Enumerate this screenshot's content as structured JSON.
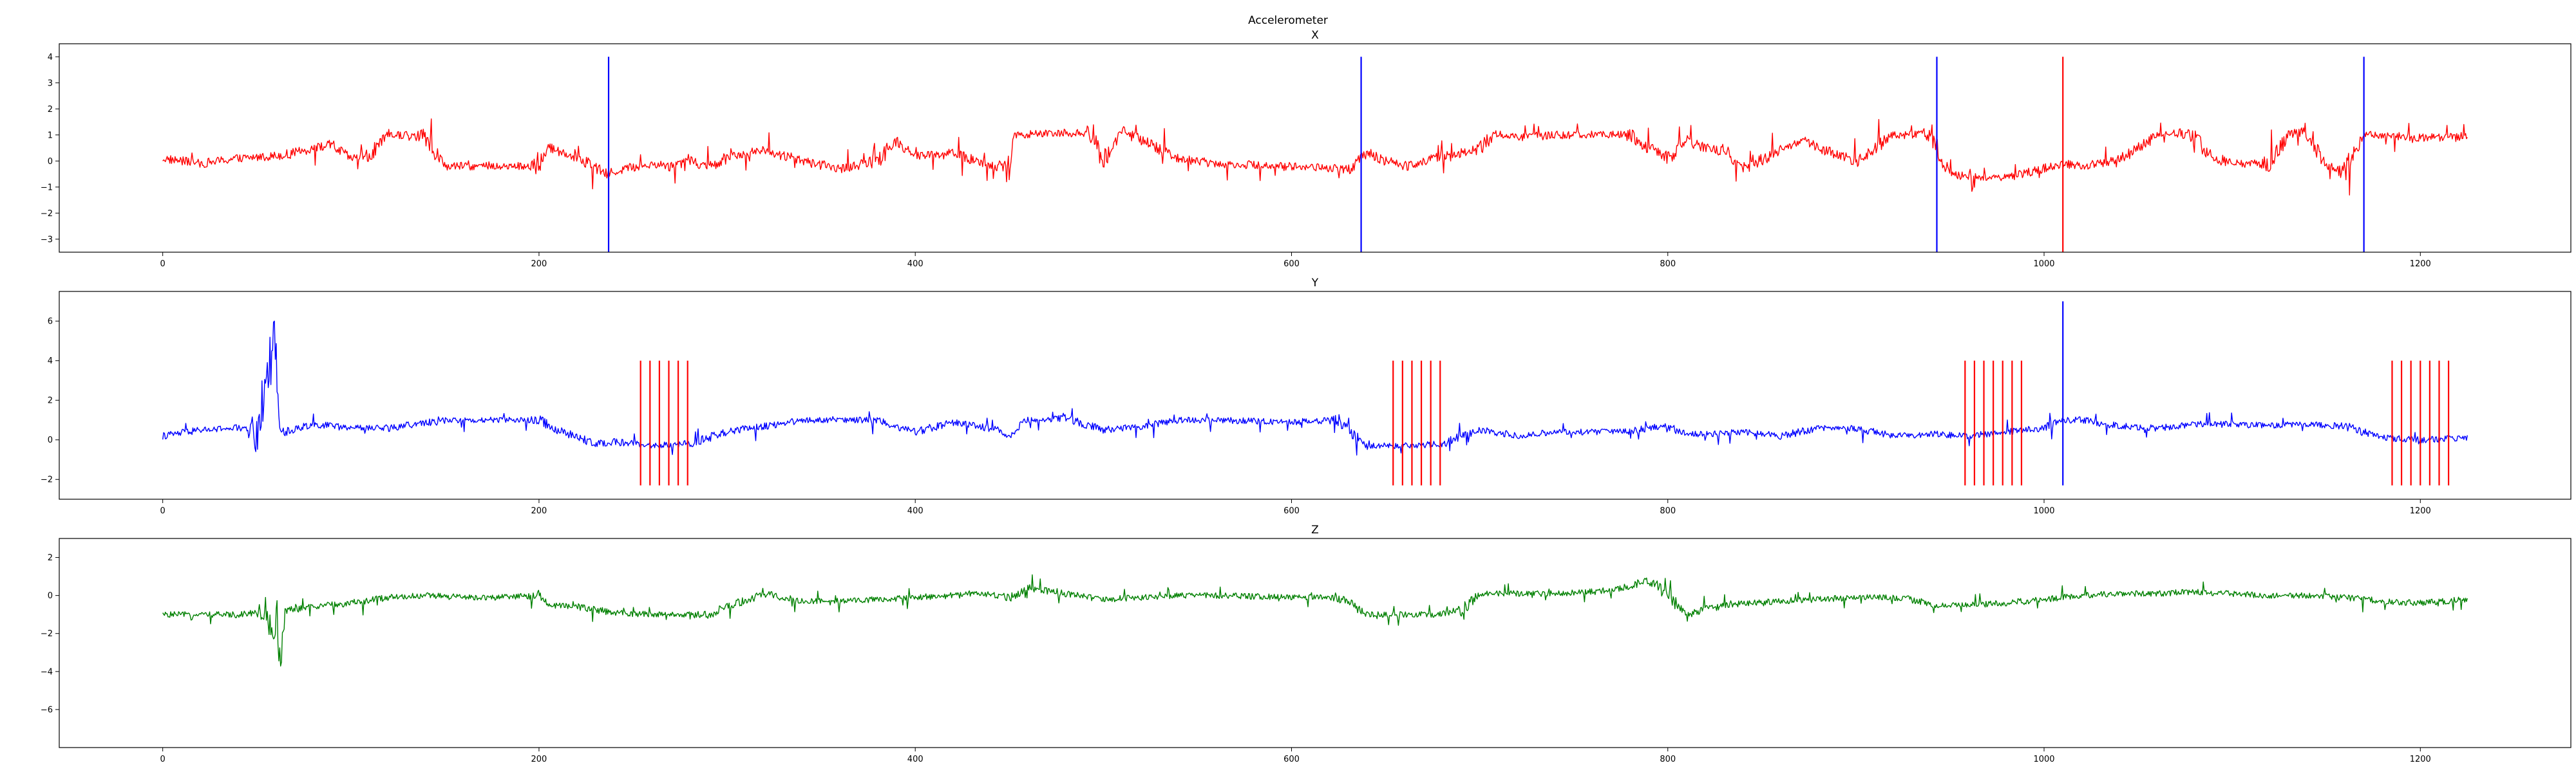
{
  "figure": {
    "title": "Accelerometer"
  },
  "chart_data": [
    {
      "type": "line",
      "title": "X",
      "xlim": [
        -55,
        1280
      ],
      "ylim": [
        -3.5,
        4.5
      ],
      "xticks": [
        0,
        200,
        400,
        600,
        800,
        1000,
        1200
      ],
      "yticks": [
        -3,
        -2,
        -1,
        0,
        1,
        2,
        3,
        4
      ],
      "xlabel": "",
      "ylabel": "",
      "series": [
        {
          "color": "#ff0000",
          "x": [
            0,
            20,
            40,
            60,
            70,
            80,
            90,
            100,
            110,
            120,
            130,
            140,
            150,
            160,
            175,
            200,
            205,
            220,
            236,
            245,
            260,
            270,
            280,
            290,
            300,
            320,
            340,
            360,
            380,
            390,
            400,
            420,
            440,
            450,
            452,
            480,
            495,
            500,
            510,
            520,
            540,
            560,
            600,
            630,
            640,
            650,
            660,
            670,
            680,
            690,
            700,
            710,
            720,
            740,
            760,
            770,
            780,
            790,
            800,
            810,
            820,
            830,
            840,
            860,
            870,
            880,
            900,
            920,
            930,
            940,
            950,
            960,
            980,
            1000,
            1010,
            1020,
            1040,
            1060,
            1070,
            1080,
            1090,
            1100,
            1120,
            1130,
            1140,
            1150,
            1160,
            1170,
            1180,
            1200,
            1220,
            1225
          ],
          "y": [
            0.1,
            -0.1,
            0.1,
            0.2,
            0.3,
            0.5,
            0.6,
            0.1,
            0.2,
            1.0,
            1.0,
            0.9,
            -0.2,
            -0.2,
            -0.2,
            -0.2,
            0.5,
            0.2,
            -0.5,
            -0.3,
            -0.1,
            -0.2,
            0.1,
            -0.3,
            0.2,
            0.4,
            0.0,
            -0.3,
            0.0,
            0.8,
            0.2,
            0.3,
            -0.2,
            -0.3,
            1.0,
            1.1,
            1.0,
            0.0,
            1.2,
            0.8,
            0.1,
            -0.1,
            -0.2,
            -0.3,
            0.3,
            0.0,
            -0.2,
            0.0,
            0.2,
            0.3,
            0.5,
            1.1,
            0.9,
            1.0,
            1.0,
            1.0,
            1.0,
            0.5,
            0.1,
            0.8,
            0.5,
            0.4,
            -0.3,
            0.4,
            0.8,
            0.5,
            0.0,
            1.0,
            1.0,
            1.0,
            -0.5,
            -0.6,
            -0.6,
            -0.3,
            -0.1,
            -0.2,
            0.0,
            1.0,
            1.1,
            0.9,
            0.1,
            -0.1,
            -0.1,
            1.0,
            1.2,
            -0.2,
            -0.4,
            1.0,
            1.0,
            0.9,
            0.9,
            1.0
          ]
        }
      ],
      "vlines": [
        {
          "x": 237,
          "ymin": -3.5,
          "ymax": 4.0,
          "color": "#0000ff"
        },
        {
          "x": 637,
          "ymin": -3.5,
          "ymax": 4.0,
          "color": "#0000ff"
        },
        {
          "x": 943,
          "ymin": -3.5,
          "ymax": 4.0,
          "color": "#0000ff"
        },
        {
          "x": 1010,
          "ymin": -3.5,
          "ymax": 4.0,
          "color": "#ff0000"
        },
        {
          "x": 1170,
          "ymin": -3.5,
          "ymax": 4.0,
          "color": "#0000ff"
        }
      ]
    },
    {
      "type": "line",
      "title": "Y",
      "xlim": [
        -55,
        1280
      ],
      "ylim": [
        -3.0,
        7.5
      ],
      "xticks": [
        0,
        200,
        400,
        600,
        800,
        1000,
        1200
      ],
      "yticks": [
        -2,
        0,
        2,
        4,
        6
      ],
      "xlabel": "",
      "ylabel": "",
      "series": [
        {
          "color": "#0000ff",
          "x": [
            0,
            20,
            40,
            50,
            60,
            62,
            65,
            80,
            100,
            120,
            150,
            200,
            210,
            230,
            240,
            260,
            280,
            300,
            320,
            340,
            360,
            380,
            400,
            420,
            440,
            450,
            460,
            480,
            500,
            520,
            540,
            560,
            600,
            625,
            640,
            660,
            680,
            700,
            720,
            740,
            760,
            780,
            790,
            800,
            810,
            820,
            840,
            860,
            880,
            900,
            920,
            940,
            960,
            980,
            1000,
            1010,
            1020,
            1040,
            1060,
            1080,
            1100,
            1120,
            1140,
            1160,
            1180,
            1200,
            1225
          ],
          "y": [
            0.2,
            0.5,
            0.6,
            0.4,
            5.5,
            0.5,
            0.4,
            0.8,
            0.6,
            0.6,
            1.0,
            1.0,
            0.5,
            -0.2,
            -0.1,
            -0.3,
            -0.2,
            0.4,
            0.7,
            1.0,
            1.0,
            1.0,
            0.4,
            0.9,
            0.6,
            0.3,
            1.0,
            1.1,
            0.5,
            0.7,
            1.0,
            1.0,
            0.9,
            1.0,
            -0.3,
            -0.3,
            -0.2,
            0.5,
            0.2,
            0.4,
            0.4,
            0.4,
            0.6,
            0.7,
            0.3,
            0.3,
            0.4,
            0.2,
            0.6,
            0.6,
            0.2,
            0.3,
            0.2,
            0.4,
            0.6,
            1.0,
            1.0,
            0.7,
            0.6,
            0.8,
            0.8,
            0.7,
            0.8,
            0.7,
            0.1,
            0.0,
            0.1
          ]
        }
      ],
      "vlines": [
        {
          "x": 254,
          "ymin": -2.3,
          "ymax": 4.0,
          "color": "#ff0000"
        },
        {
          "x": 259,
          "ymin": -2.3,
          "ymax": 4.0,
          "color": "#ff0000"
        },
        {
          "x": 264,
          "ymin": -2.3,
          "ymax": 4.0,
          "color": "#ff0000"
        },
        {
          "x": 269,
          "ymin": -2.3,
          "ymax": 4.0,
          "color": "#ff0000"
        },
        {
          "x": 274,
          "ymin": -2.3,
          "ymax": 4.0,
          "color": "#ff0000"
        },
        {
          "x": 279,
          "ymin": -2.3,
          "ymax": 4.0,
          "color": "#ff0000"
        },
        {
          "x": 654,
          "ymin": -2.3,
          "ymax": 4.0,
          "color": "#ff0000"
        },
        {
          "x": 659,
          "ymin": -2.3,
          "ymax": 4.0,
          "color": "#ff0000"
        },
        {
          "x": 664,
          "ymin": -2.3,
          "ymax": 4.0,
          "color": "#ff0000"
        },
        {
          "x": 669,
          "ymin": -2.3,
          "ymax": 4.0,
          "color": "#ff0000"
        },
        {
          "x": 674,
          "ymin": -2.3,
          "ymax": 4.0,
          "color": "#ff0000"
        },
        {
          "x": 679,
          "ymin": -2.3,
          "ymax": 4.0,
          "color": "#ff0000"
        },
        {
          "x": 958,
          "ymin": -2.3,
          "ymax": 4.0,
          "color": "#ff0000"
        },
        {
          "x": 963,
          "ymin": -2.3,
          "ymax": 4.0,
          "color": "#ff0000"
        },
        {
          "x": 968,
          "ymin": -2.3,
          "ymax": 4.0,
          "color": "#ff0000"
        },
        {
          "x": 973,
          "ymin": -2.3,
          "ymax": 4.0,
          "color": "#ff0000"
        },
        {
          "x": 978,
          "ymin": -2.3,
          "ymax": 4.0,
          "color": "#ff0000"
        },
        {
          "x": 983,
          "ymin": -2.3,
          "ymax": 4.0,
          "color": "#ff0000"
        },
        {
          "x": 988,
          "ymin": -2.3,
          "ymax": 4.0,
          "color": "#ff0000"
        },
        {
          "x": 1010,
          "ymin": -2.3,
          "ymax": 7.0,
          "color": "#0000ff"
        },
        {
          "x": 1185,
          "ymin": -2.3,
          "ymax": 4.0,
          "color": "#ff0000"
        },
        {
          "x": 1190,
          "ymin": -2.3,
          "ymax": 4.0,
          "color": "#ff0000"
        },
        {
          "x": 1195,
          "ymin": -2.3,
          "ymax": 4.0,
          "color": "#ff0000"
        },
        {
          "x": 1200,
          "ymin": -2.3,
          "ymax": 4.0,
          "color": "#ff0000"
        },
        {
          "x": 1205,
          "ymin": -2.3,
          "ymax": 4.0,
          "color": "#ff0000"
        },
        {
          "x": 1210,
          "ymin": -2.3,
          "ymax": 4.0,
          "color": "#ff0000"
        },
        {
          "x": 1215,
          "ymin": -2.3,
          "ymax": 4.0,
          "color": "#ff0000"
        }
      ]
    },
    {
      "type": "line",
      "title": "Z",
      "xlim": [
        -55,
        1280
      ],
      "ylim": [
        -8.0,
        3.0
      ],
      "xticks": [
        0,
        200,
        400,
        600,
        800,
        1000,
        1200
      ],
      "yticks": [
        -6,
        -4,
        -2,
        0,
        2
      ],
      "xlabel": "",
      "ylabel": "",
      "series": [
        {
          "color": "#008000",
          "x": [
            0,
            20,
            40,
            55,
            63,
            65,
            80,
            100,
            120,
            140,
            160,
            180,
            200,
            205,
            220,
            240,
            260,
            280,
            290,
            300,
            320,
            340,
            360,
            380,
            400,
            420,
            440,
            450,
            460,
            480,
            500,
            520,
            540,
            560,
            600,
            625,
            640,
            660,
            680,
            690,
            700,
            720,
            740,
            760,
            770,
            780,
            790,
            800,
            810,
            820,
            840,
            860,
            880,
            900,
            920,
            930,
            940,
            960,
            980,
            1000,
            1010,
            1020,
            1040,
            1060,
            1080,
            1100,
            1120,
            1140,
            1160,
            1180,
            1200,
            1225
          ],
          "y": [
            -1.0,
            -1.0,
            -1.0,
            -0.8,
            -3.5,
            -0.8,
            -0.6,
            -0.4,
            -0.1,
            0.0,
            -0.1,
            -0.1,
            0.0,
            -0.5,
            -0.6,
            -0.9,
            -1.0,
            -1.0,
            -1.0,
            -0.6,
            0.1,
            -0.3,
            -0.3,
            -0.2,
            -0.1,
            0.0,
            0.1,
            -0.1,
            0.4,
            0.1,
            -0.2,
            -0.1,
            0.0,
            0.0,
            -0.1,
            -0.1,
            -1.0,
            -1.0,
            -1.0,
            -0.8,
            0.1,
            0.1,
            0.1,
            0.2,
            0.3,
            0.5,
            0.8,
            0.0,
            -1.0,
            -0.7,
            -0.4,
            -0.3,
            -0.2,
            -0.1,
            -0.1,
            -0.2,
            -0.5,
            -0.5,
            -0.4,
            -0.2,
            -0.1,
            0.0,
            0.1,
            0.1,
            0.2,
            0.1,
            0.0,
            0.0,
            -0.1,
            -0.3,
            -0.4,
            -0.2
          ]
        }
      ],
      "vlines": []
    }
  ]
}
